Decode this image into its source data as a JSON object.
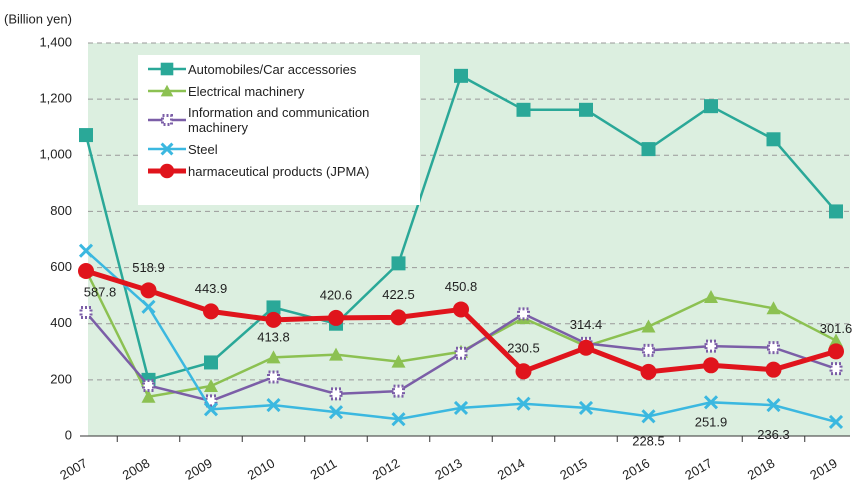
{
  "chart_data": {
    "type": "line",
    "y_label": "(Billion yen)",
    "categories": [
      "2007",
      "2008",
      "2009",
      "2010",
      "2011",
      "2012",
      "2013",
      "2014",
      "2015",
      "2016",
      "2017",
      "2018",
      "2019"
    ],
    "series": [
      {
        "name": "Automobiles/Car accessories",
        "color": "#2aa898",
        "marker": "square",
        "values": [
          1072,
          200,
          262,
          458,
          400,
          615,
          1283,
          1162,
          1162,
          1022,
          1175,
          1057,
          800
        ]
      },
      {
        "name": "Electrical machinery",
        "color": "#8cc152",
        "marker": "triangle",
        "values": [
          590,
          140,
          178,
          280,
          290,
          265,
          300,
          420,
          320,
          390,
          495,
          455,
          340
        ]
      },
      {
        "name": "Information and communication machinery",
        "color": "#7b5ea7",
        "marker": "checker",
        "values": [
          440,
          180,
          125,
          210,
          150,
          160,
          295,
          435,
          330,
          305,
          320,
          315,
          240
        ]
      },
      {
        "name": "Steel",
        "color": "#3bb8e0",
        "marker": "x",
        "values": [
          660,
          460,
          95,
          110,
          85,
          60,
          100,
          115,
          100,
          70,
          120,
          110,
          50
        ]
      },
      {
        "name": "harmaceutical products (JPMA)",
        "color": "#e0141c",
        "marker": "circle",
        "values": [
          587.8,
          518.9,
          443.9,
          413.8,
          420.6,
          422.5,
          450.8,
          230.5,
          314.4,
          228.5,
          251.9,
          236.3,
          301.6
        ],
        "show_labels": true
      }
    ],
    "ylim": [
      0,
      1400
    ],
    "yticks": [
      0,
      200,
      400,
      600,
      800,
      {
        "value": 1000,
        "label": "1,000"
      },
      {
        "value": 1200,
        "label": "1,200"
      },
      {
        "value": 1400,
        "label": "1,400"
      }
    ],
    "grid": true
  }
}
